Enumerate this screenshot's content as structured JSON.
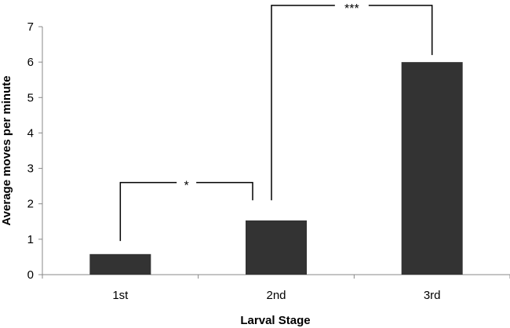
{
  "chart_data": {
    "type": "bar",
    "title": "",
    "xlabel": "Larval Stage",
    "ylabel": "Average moves per minute",
    "categories": [
      "1st",
      "2nd",
      "3rd"
    ],
    "values": [
      0.58,
      1.53,
      6.0
    ],
    "ylim": [
      0,
      7
    ],
    "yticks": [
      "0",
      "1",
      "2",
      "3",
      "4",
      "5",
      "6",
      "7"
    ],
    "grid": false,
    "legend": "none",
    "bar_color": "#333333",
    "annotations": [
      {
        "from": "1st",
        "to": "2nd",
        "label": "*",
        "bar_level": 2.6,
        "drop_from": 0.95,
        "drop_to": 2.1
      },
      {
        "from": "2nd",
        "to": "3rd",
        "label": "***",
        "bar_level": 7.6,
        "drop_from": 2.1,
        "drop_to": 6.2
      }
    ]
  }
}
